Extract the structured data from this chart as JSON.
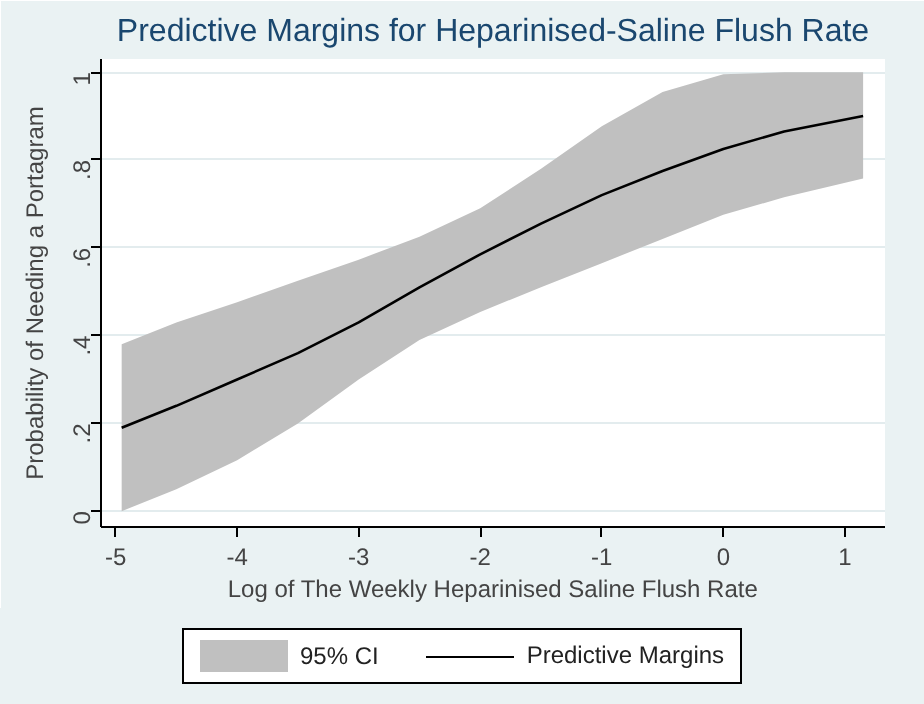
{
  "chart_data": {
    "type": "line",
    "title": "Predictive Margins for Heparinised-Saline Flush Rate",
    "xlabel": "Log of The Weekly Heparinised Saline Flush Rate",
    "ylabel": "Probability of Needing a Portagram",
    "annotations": [
      "95% CI"
    ],
    "x": [
      -4.95,
      -4.5,
      -4,
      -3.5,
      -3,
      -2.5,
      -2,
      -1.5,
      -1,
      -0.5,
      0,
      0.5,
      1.15
    ],
    "series": [
      {
        "name": "Predictive Margins",
        "color": "#000000",
        "values": [
          0.19,
          0.24,
          0.3,
          0.36,
          0.43,
          0.51,
          0.585,
          0.655,
          0.72,
          0.775,
          0.825,
          0.865,
          0.9
        ],
        "lower": [
          0,
          0.05,
          0.116,
          0.2,
          0.3,
          0.39,
          0.454,
          0.51,
          0.565,
          0.62,
          0.675,
          0.715,
          0.758
        ],
        "upper": [
          0.38,
          0.43,
          0.476,
          0.525,
          0.573,
          0.625,
          0.69,
          0.78,
          0.877,
          0.955,
          0.995,
          1,
          1
        ]
      }
    ],
    "xlim": [
      -5.12,
      1.33
    ],
    "ylim": [
      -0.036,
      1.03
    ],
    "xticks": [
      -5,
      -4,
      -3,
      -2,
      -1,
      0,
      1
    ],
    "yticks": [
      0,
      {
        "value": 0.2,
        "label": ".2"
      },
      {
        "value": 0.4,
        "label": ".4"
      },
      {
        "value": 0.6,
        "label": ".6"
      },
      {
        "value": 0.8,
        "label": ".8"
      },
      1
    ],
    "grid": "y",
    "legend": "bottom",
    "line_style": "solid"
  }
}
